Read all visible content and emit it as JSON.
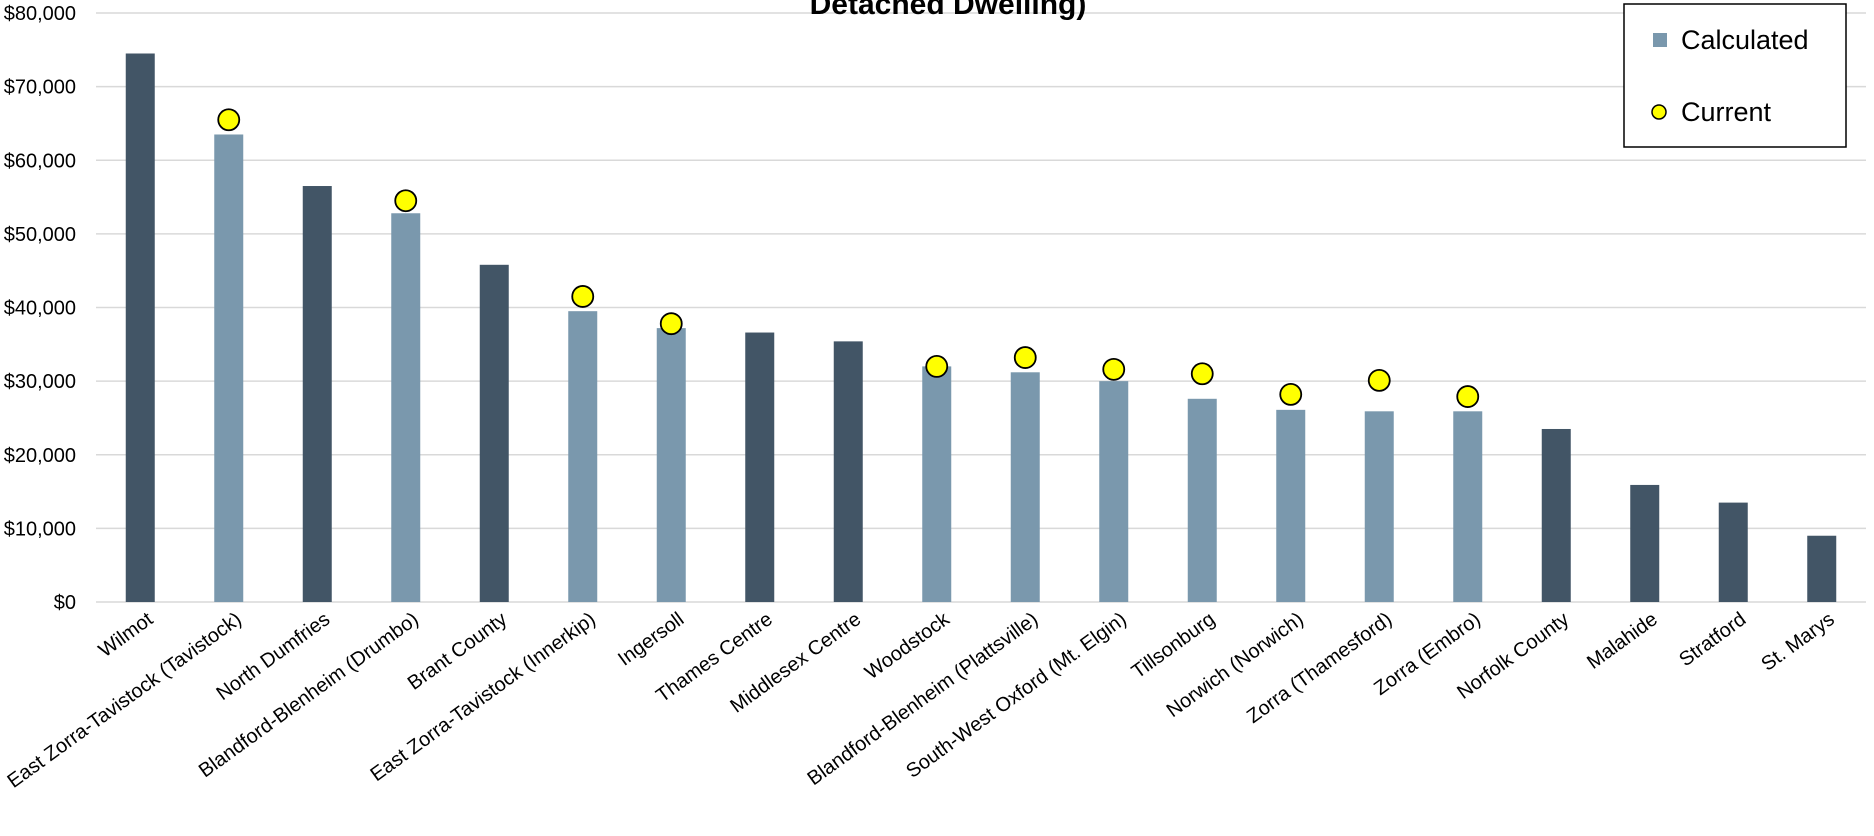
{
  "chart_data": {
    "type": "bar",
    "title": "Detached Dwelling)",
    "ylim": [
      0,
      80000
    ],
    "yticks": [
      "$0",
      "$10,000",
      "$20,000",
      "$30,000",
      "$40,000",
      "$50,000",
      "$60,000",
      "$70,000",
      "$80,000"
    ],
    "grid": true,
    "legend_position": "top-right",
    "categories": [
      "Wilmot",
      "East Zorra-Tavistock (Tavistock)",
      "North Dumfries",
      "Blandford-Blenheim (Drumbo)",
      "Brant County",
      "East Zorra-Tavistock (Innerkip)",
      "Ingersoll",
      "Thames Centre",
      "Middlesex Centre",
      "Woodstock",
      "Blandford-Blenheim (Plattsville)",
      "South-West Oxford (Mt. Elgin)",
      "Tillsonburg",
      "Norwich (Norwich)",
      "Zorra (Thamesford)",
      "Zorra (Embro)",
      "Norfolk County",
      "Malahide",
      "Stratford",
      "St. Marys"
    ],
    "values": [
      74500,
      63500,
      56500,
      52800,
      45800,
      39500,
      37200,
      36600,
      35400,
      32000,
      31200,
      30000,
      27600,
      26100,
      25900,
      25900,
      23500,
      15900,
      13500,
      9000
    ],
    "highlighted": [
      false,
      true,
      false,
      true,
      false,
      true,
      true,
      false,
      false,
      true,
      true,
      true,
      true,
      true,
      true,
      true,
      false,
      false,
      false,
      false
    ],
    "series": [
      {
        "name": "Calculated",
        "marker": "bar",
        "color": "#7a98ad"
      },
      {
        "name": "Current",
        "marker": "circle",
        "color": "#ffff00",
        "values": [
          null,
          65500,
          null,
          54500,
          null,
          41500,
          37800,
          null,
          null,
          32000,
          33200,
          31600,
          31000,
          28200,
          30100,
          27900,
          null,
          null,
          null,
          null
        ]
      }
    ],
    "colors": {
      "dark_bar": "#425566",
      "light_bar": "#7a98ad",
      "current_marker": "#ffff00",
      "grid": "#d9d9d9"
    }
  }
}
